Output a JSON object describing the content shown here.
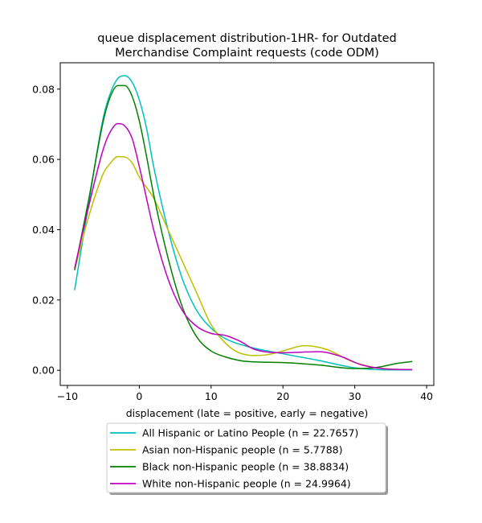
{
  "chart_data": {
    "type": "line",
    "title_lines": [
      "queue displacement distribution-1HR-  for Outdated",
      "Merchandise Complaint  requests (code ODM)"
    ],
    "xlabel": "displacement (late = positive, early = negative)",
    "ylabel": "",
    "xlim": [
      -11,
      41
    ],
    "ylim": [
      -0.0043,
      0.0875
    ],
    "xticks": [
      -10,
      0,
      10,
      20,
      30,
      40
    ],
    "xtick_labels": [
      "−10",
      "0",
      "10",
      "20",
      "30",
      "40"
    ],
    "yticks": [
      0.0,
      0.02,
      0.04,
      0.06,
      0.08
    ],
    "ytick_labels": [
      "0.00",
      "0.02",
      "0.04",
      "0.06",
      "0.08"
    ],
    "grid": false,
    "legend_position": "below",
    "series": [
      {
        "name": "All Hispanic or Latino People (n = 22.7657)",
        "color": "#00bfbf",
        "x": [
          -9,
          -7,
          -5,
          -4,
          -3,
          -2,
          -1,
          0,
          1,
          2,
          4,
          6,
          8,
          10,
          12,
          15,
          20,
          25,
          30,
          35,
          38
        ],
        "y": [
          0.0228,
          0.048,
          0.072,
          0.079,
          0.083,
          0.0838,
          0.082,
          0.077,
          0.069,
          0.058,
          0.04,
          0.026,
          0.017,
          0.012,
          0.009,
          0.0068,
          0.0047,
          0.0028,
          0.0007,
          0.0001,
          0.0001
        ]
      },
      {
        "name": "Asian non-Hispanic people (n = 5.7788)",
        "color": "#bfbf00",
        "x": [
          -9,
          -7,
          -5,
          -4,
          -3,
          -2,
          -1,
          0,
          2,
          4,
          6,
          8,
          10,
          13,
          16,
          18,
          20,
          23,
          26,
          30,
          35,
          38
        ],
        "y": [
          0.0285,
          0.044,
          0.056,
          0.059,
          0.0608,
          0.0607,
          0.059,
          0.055,
          0.049,
          0.04,
          0.031,
          0.022,
          0.013,
          0.006,
          0.0042,
          0.0045,
          0.0055,
          0.007,
          0.006,
          0.0022,
          0.0003,
          0.0002
        ]
      },
      {
        "name": "Black non-Hispanic people (n = 38.8834)",
        "color": "#008000",
        "x": [
          -9,
          -7,
          -5,
          -4,
          -3,
          -2,
          -1,
          0,
          1,
          2,
          4,
          6,
          8,
          10,
          12,
          15,
          20,
          25,
          30,
          33,
          36,
          38
        ],
        "y": [
          0.0285,
          0.049,
          0.071,
          0.078,
          0.081,
          0.081,
          0.078,
          0.071,
          0.061,
          0.05,
          0.032,
          0.018,
          0.0095,
          0.0055,
          0.0038,
          0.0025,
          0.0022,
          0.0015,
          0.0005,
          0.0008,
          0.002,
          0.0025
        ]
      },
      {
        "name": "White non-Hispanic people (n = 24.9964)",
        "color": "#bf00bf",
        "x": [
          -9,
          -7,
          -5,
          -4,
          -3,
          -2,
          -1,
          0,
          1,
          2,
          4,
          6,
          8,
          10,
          12,
          14,
          16,
          20,
          25,
          28,
          31,
          35,
          38
        ],
        "y": [
          0.029,
          0.047,
          0.063,
          0.068,
          0.0702,
          0.0695,
          0.066,
          0.058,
          0.049,
          0.04,
          0.026,
          0.017,
          0.0125,
          0.0105,
          0.0099,
          0.0083,
          0.006,
          0.005,
          0.0053,
          0.004,
          0.0015,
          0.0003,
          0.0002
        ]
      }
    ]
  }
}
